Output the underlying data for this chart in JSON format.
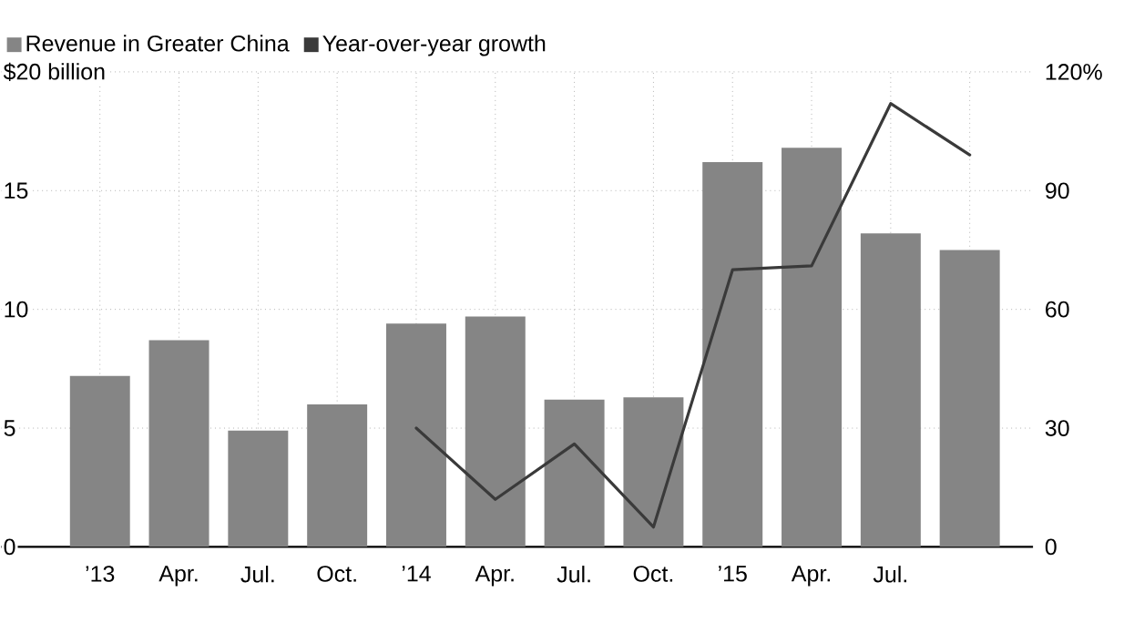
{
  "chart_data": {
    "type": "bar",
    "categories": [
      "’13",
      "Apr.",
      "Jul.",
      "Oct.",
      "’14",
      "Apr.",
      "Jul.",
      "Oct.",
      "’15",
      "Apr.",
      "Jul.",
      null
    ],
    "series": [
      {
        "name": "Revenue in Greater China",
        "color": "#858585",
        "values": [
          7.2,
          8.7,
          4.9,
          6.0,
          9.4,
          9.7,
          6.2,
          6.3,
          16.2,
          16.8,
          13.2,
          12.5
        ]
      },
      {
        "name": "Year-over-year growth",
        "type": "line",
        "axis": "y2",
        "color": "#3a3a3a",
        "values": [
          null,
          null,
          null,
          null,
          30,
          12,
          26,
          5,
          70,
          71,
          112,
          99
        ]
      }
    ],
    "ylim": [
      0,
      20
    ],
    "yticks": [
      0,
      5,
      10,
      15,
      {
        "value": 20,
        "label": "$20 billion"
      }
    ],
    "y2lim": [
      0,
      120
    ],
    "y2ticks": [
      0,
      30,
      60,
      90,
      {
        "value": 120,
        "label": "120%"
      }
    ],
    "grid": true,
    "legend": "top left"
  }
}
